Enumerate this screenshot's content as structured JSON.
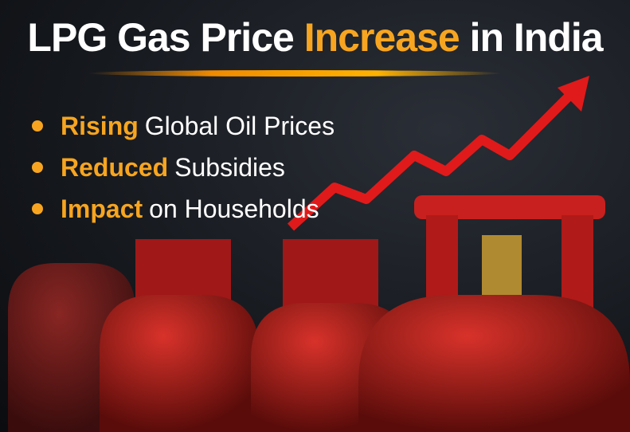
{
  "title": {
    "part1": "LPG Gas Price",
    "highlight": "Increase",
    "part2": "in India"
  },
  "bullets": [
    {
      "key": "Rising",
      "rest": "Global Oil Prices"
    },
    {
      "key": "Reduced",
      "rest": "Subsidies"
    },
    {
      "key": "Impact",
      "rest": "on Households"
    }
  ],
  "colors": {
    "accent": "#f7a520",
    "cylinder": "#c8201e",
    "arrow": "#e01a1a"
  }
}
